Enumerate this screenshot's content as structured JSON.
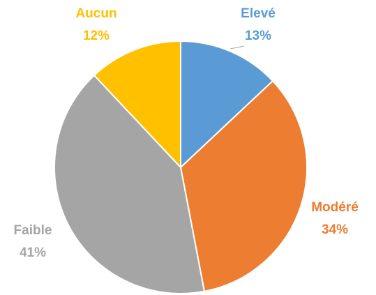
{
  "chart_data": {
    "type": "pie",
    "categories": [
      "Elevé",
      "Modéré",
      "Faible",
      "Aucun"
    ],
    "values": [
      13,
      34,
      41,
      12
    ],
    "value_labels": [
      "13%",
      "34%",
      "41%",
      "12%"
    ],
    "colors": [
      "#5b9bd5",
      "#ed7d31",
      "#a5a5a5",
      "#ffc000"
    ]
  }
}
